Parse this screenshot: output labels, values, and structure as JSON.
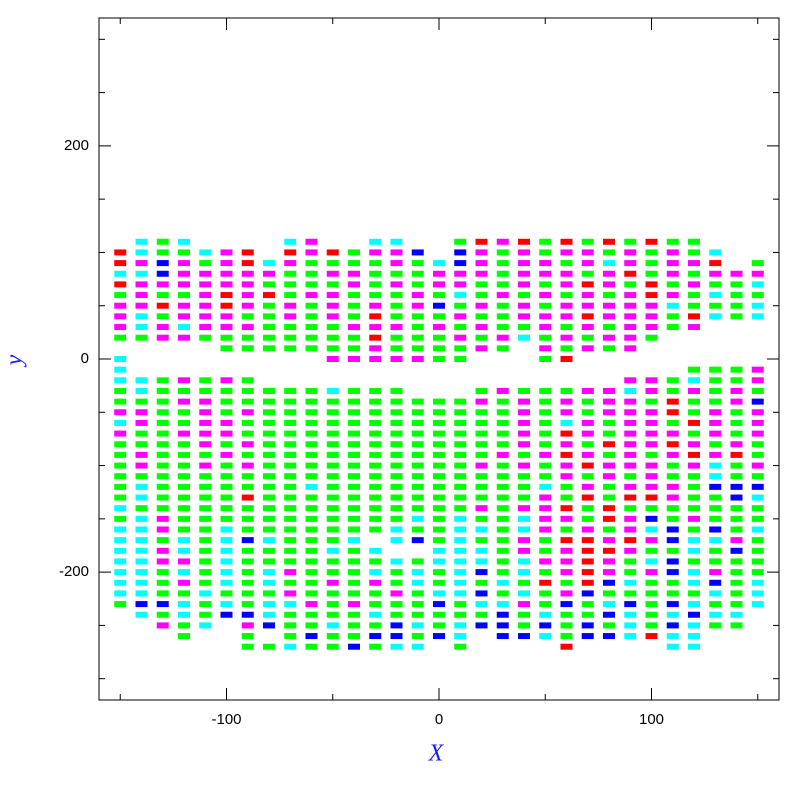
{
  "chart_data": {
    "type": "scatter",
    "xlabel": "X",
    "ylabel": "y",
    "xlim": [
      -160,
      160
    ],
    "ylim": [
      -320,
      320
    ],
    "xticks": [
      -100,
      0,
      100
    ],
    "yticks": [
      -200,
      0,
      200
    ],
    "xminorticks": [
      -150,
      -50,
      50,
      150
    ],
    "yminorticks": [
      -300,
      -250,
      -150,
      -100,
      -50,
      50,
      100,
      150,
      250,
      300
    ],
    "palette": {
      "G": "#00ff00",
      "M": "#ff00ff",
      "C": "#00ffff",
      "R": "#ff0000",
      "B": "#0000ff"
    },
    "columns": [
      -150,
      -140,
      -130,
      -120,
      -110,
      -100,
      -90,
      -80,
      -70,
      -60,
      -50,
      -40,
      -30,
      -20,
      -10,
      0,
      10,
      20,
      30,
      40,
      50,
      60,
      70,
      80,
      90,
      100,
      110,
      120,
      130,
      140,
      150
    ],
    "rows": [
      {
        "y": 110,
        "colors": ".CGC....CM..CC..GRMRGRGRGRGG..."
      },
      {
        "y": 100,
        "colors": "RCGGCMR.RMRGMMB.BMGMGMMGMGMGC.."
      },
      {
        "y": 90,
        "colors": "RMBMGMRCMGGGGMGCBMGMMGMCMGMMR.G"
      },
      {
        "y": 80,
        "colors": "CCBMMMMMGGMMGGGMMMGMMMGMRGMGMMM"
      },
      {
        "y": 70,
        "colors": "RMMMMMMGGGGMGMGMMGGMGMRMGRGMGGC"
      },
      {
        "y": 60,
        "colors": "GMGGMRMRGMMGGGMGCGMGMGMGMRMGCGG"
      },
      {
        "y": 50,
        "colors": "MMRMMRMGMGMGMGMBGMGMGMMMMMCGGGC"
      },
      {
        "y": 40,
        "colors": "MCGMMMGGMGMGRGGGMGGMMMRMMMGRCGC"
      },
      {
        "y": 30,
        "colors": "MCMCMMMGGGGMMMGMGMGGMGMGMMGM..."
      },
      {
        "y": 20,
        "colors": "GGMMGGGGGGGGRGGGMGMCGMGMMG....."
      },
      {
        "y": 10,
        "colors": ".....GGGGGGGMGGGGMG.MGMGM......"
      },
      {
        "y": 0,
        "colors": "C.........MMMMMGG...GR........."
      },
      {
        "y": -10,
        "colors": "C..........................GGGM"
      },
      {
        "y": -20,
        "colors": "CCGMGMG.................MMGCGGM"
      },
      {
        "y": -30,
        "colors": "GCGGGGGGGGCGGG...GMGGGMMCMGMGMG"
      },
      {
        "y": -40,
        "colors": "GGGMMGGGGGGGGGGGGMGMGMGMMGRGGMB"
      },
      {
        "y": -50,
        "colors": "MMGGMGMGGGGGGGGGGGGMGMGMMMRGMGM"
      },
      {
        "y": -60,
        "colors": "CMGGMMGGGGGGGGGGGGGMGCMGMMGRMGM"
      },
      {
        "y": -70,
        "colors": "MGGMMMGGGGGGGGGGGGGMGRMGMMMGMGM"
      },
      {
        "y": -80,
        "colors": "GGGGMGMGGGGGGGGGGGGMGMGRMMRMGMG"
      },
      {
        "y": -90,
        "colors": "GMGGGMGGGGGGGGGGGGMGMRMGMGMRMRG"
      },
      {
        "y": -100,
        "colors": "GMGGMGMGGGGGGGGGGMGMGMRMMMGMCGM"
      },
      {
        "y": -110,
        "colors": "GGGGGGGGGGGGGGGGGGGGGMGMGMGGCGG"
      },
      {
        "y": -120,
        "colors": "GCGGGGGGGCGGGGGGGGGGCGMGMMMGBBB"
      },
      {
        "y": -130,
        "colors": "GCGGGGRGGGGGGGGGGGGGMGRGRRMGGBC"
      },
      {
        "y": -140,
        "colors": "CGGGGGGGGGGGGGGGGMGMMRGRGGGGGGG"
      },
      {
        "y": -150,
        "colors": "GCMGGGGGGGGGGGCGCGGCMMGRMBGMGGG"
      },
      {
        "y": -160,
        "colors": "CCMGGCGGGGGGGCGGCCGCMGMGMCBGBGC"
      },
      {
        "y": -170,
        "colors": "CCGCGCBCGGGC.CBGCGGMGRRMRMBCCMG"
      },
      {
        "y": -180,
        "colors": "CCMCGCGGGGCGC..CCCGMGMRRMGGCGBG"
      },
      {
        "y": -190,
        "colors": "CCMMGCGGGGGGGCGCCCGCMMRMGCBGGGG"
      },
      {
        "y": -200,
        "colors": "CCGCGCGCMGGGCGCGCBGCGMRMGMBCMGG"
      },
      {
        "y": -210,
        "colors": "CCGMGCGCGGMGMGCGCGCGRGRBCGGCBGC"
      },
      {
        "y": -220,
        "colors": "CCGGCGGGMGGGGMGCCBGCGMBGGGGGCGC"
      },
      {
        "y": -230,
        "colors": "GBBCGCGCCMGMGGGBGCCMGBGCBGBCGGC"
      },
      {
        "y": -240,
        "colors": ".CGCGBBCGGGGCGGGGGBGCGGBCGCBCC."
      },
      {
        "y": -250,
        "colors": "..MGC.MBGGCGGBCGCBBGBGBGCGBCGG."
      },
      {
        "y": -260,
        "colors": "...G..G.GBGGBBGBC.BBCGBBCRCC..."
      },
      {
        "y": -270,
        "colors": "......GGCGGBGCC.G....R....CC..."
      }
    ]
  }
}
